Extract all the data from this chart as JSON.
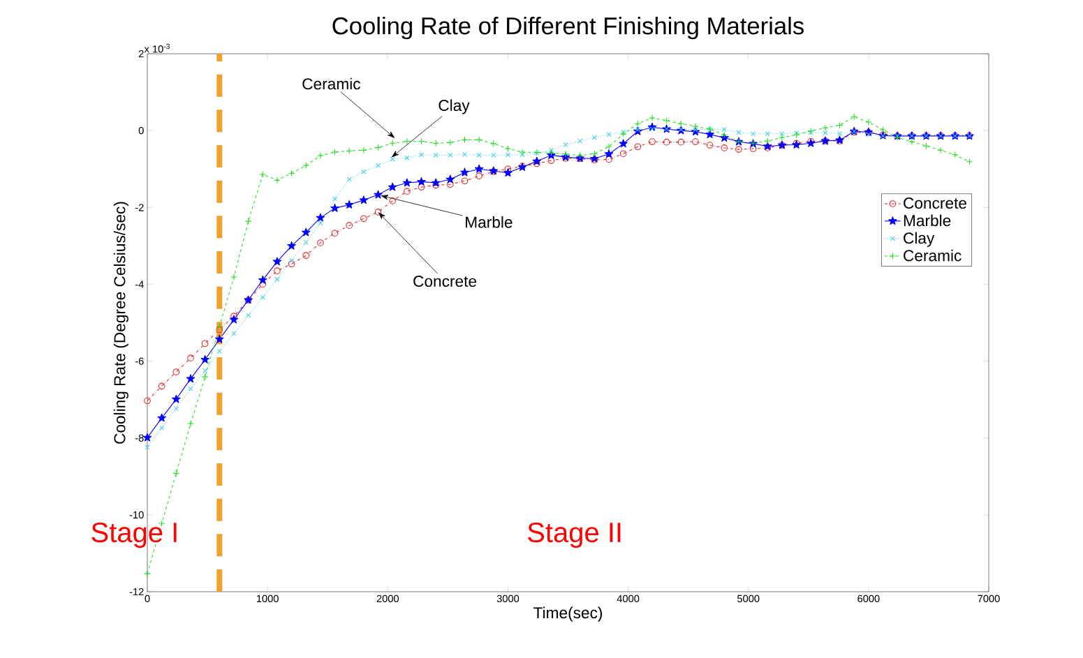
{
  "chart_data": {
    "type": "line",
    "title": "Cooling Rate of Different Finishing Materials",
    "xlabel": "Time(sec)",
    "ylabel": "Cooling Rate (Degree Celsius/sec)",
    "x": [
      0,
      120,
      240,
      360,
      480,
      600,
      720,
      840,
      960,
      1080,
      1200,
      1320,
      1440,
      1560,
      1680,
      1800,
      1920,
      2040,
      2160,
      2280,
      2400,
      2520,
      2640,
      2760,
      2880,
      3000,
      3120,
      3240,
      3360,
      3480,
      3600,
      3720,
      3840,
      3960,
      4080,
      4200,
      4320,
      4440,
      4560,
      4680,
      4800,
      4920,
      5040,
      5160,
      5280,
      5400,
      5520,
      5640,
      5760,
      5880,
      6000,
      6120,
      6240,
      6360,
      6480,
      6600,
      6720,
      6840
    ],
    "series": [
      {
        "name": "Concrete",
        "color": "#e02020",
        "marker": "circle",
        "line_style": "dashdot",
        "values": [
          -7.03,
          -6.65,
          -6.28,
          -5.92,
          -5.54,
          -5.18,
          -4.83,
          -4.41,
          -4.0,
          -3.65,
          -3.47,
          -3.25,
          -2.92,
          -2.67,
          -2.47,
          -2.29,
          -2.12,
          -1.83,
          -1.58,
          -1.47,
          -1.42,
          -1.4,
          -1.31,
          -1.18,
          -1.07,
          -1.0,
          -0.93,
          -0.86,
          -0.78,
          -0.72,
          -0.73,
          -0.76,
          -0.75,
          -0.6,
          -0.42,
          -0.29,
          -0.3,
          -0.3,
          -0.29,
          -0.38,
          -0.45,
          -0.49,
          -0.47,
          -0.45,
          -0.38,
          -0.33,
          -0.28,
          -0.27,
          -0.27,
          -0.04,
          -0.05,
          -0.11,
          -0.14,
          -0.13,
          -0.13,
          -0.13,
          -0.13,
          -0.13
        ]
      },
      {
        "name": "Marble",
        "color": "#0000ff",
        "marker": "star",
        "line_style": "solid",
        "values": [
          -7.99,
          -7.48,
          -6.99,
          -6.46,
          -5.96,
          -5.43,
          -4.92,
          -4.41,
          -3.89,
          -3.41,
          -3.0,
          -2.65,
          -2.27,
          -2.02,
          -1.93,
          -1.81,
          -1.67,
          -1.47,
          -1.36,
          -1.33,
          -1.36,
          -1.27,
          -1.09,
          -1.0,
          -1.05,
          -1.1,
          -0.95,
          -0.8,
          -0.64,
          -0.69,
          -0.72,
          -0.73,
          -0.61,
          -0.34,
          -0.02,
          0.09,
          0.04,
          0.0,
          -0.03,
          -0.1,
          -0.19,
          -0.29,
          -0.34,
          -0.41,
          -0.38,
          -0.37,
          -0.33,
          -0.27,
          -0.25,
          -0.02,
          -0.04,
          -0.13,
          -0.14,
          -0.14,
          -0.14,
          -0.14,
          -0.14,
          -0.14
        ]
      },
      {
        "name": "Clay",
        "color": "#40d0e0",
        "marker": "cross",
        "line_style": "dotted",
        "values": [
          -8.24,
          -7.74,
          -7.23,
          -6.72,
          -6.25,
          -5.74,
          -5.28,
          -4.81,
          -4.34,
          -3.87,
          -3.38,
          -2.91,
          -2.4,
          -1.78,
          -1.27,
          -1.07,
          -0.91,
          -0.74,
          -0.71,
          -0.63,
          -0.64,
          -0.64,
          -0.62,
          -0.64,
          -0.64,
          -0.63,
          -0.63,
          -0.58,
          -0.51,
          -0.37,
          -0.27,
          -0.18,
          -0.1,
          -0.04,
          0.03,
          0.04,
          0.04,
          0.03,
          0.02,
          0.04,
          0.03,
          -0.05,
          -0.08,
          -0.08,
          -0.08,
          -0.06,
          -0.05,
          -0.06,
          -0.08,
          -0.02,
          -0.1,
          -0.14,
          -0.14,
          -0.14,
          -0.14,
          -0.14,
          -0.14,
          -0.14
        ]
      },
      {
        "name": "Ceramic",
        "color": "#20e020",
        "marker": "plus",
        "line_style": "dashed",
        "values": [
          -11.53,
          -10.22,
          -8.92,
          -7.63,
          -6.41,
          -5.1,
          -3.81,
          -2.36,
          -1.14,
          -1.29,
          -1.11,
          -0.91,
          -0.65,
          -0.56,
          -0.53,
          -0.51,
          -0.44,
          -0.33,
          -0.28,
          -0.28,
          -0.33,
          -0.31,
          -0.24,
          -0.24,
          -0.34,
          -0.47,
          -0.56,
          -0.57,
          -0.58,
          -0.61,
          -0.65,
          -0.6,
          -0.42,
          -0.09,
          0.18,
          0.33,
          0.26,
          0.18,
          0.11,
          0.04,
          -0.11,
          -0.29,
          -0.33,
          -0.27,
          -0.18,
          -0.11,
          -0.01,
          0.07,
          0.14,
          0.36,
          0.22,
          0.02,
          -0.18,
          -0.29,
          -0.4,
          -0.51,
          -0.63,
          -0.81
        ]
      }
    ],
    "xlim": [
      0,
      7000
    ],
    "ylim": [
      -12,
      2
    ],
    "xticks": [
      0,
      1000,
      2000,
      3000,
      4000,
      5000,
      6000,
      7000
    ],
    "yticks": [
      -12,
      -10,
      -8,
      -6,
      -4,
      -2,
      0,
      2
    ],
    "ref_lines": [
      {
        "axis": "x",
        "value": 600,
        "color": "#f0a030",
        "line_style": "dashed"
      }
    ],
    "annotations": [
      "x 10$^{-3}$",
      {
        "text": "Ceramic",
        "x": 2060,
        "y": -0.2
      },
      {
        "text": "Clay",
        "x": 2030,
        "y": -0.7
      },
      {
        "text": "Marble",
        "x": 1940,
        "y": -1.69
      },
      {
        "text": "Concrete",
        "x": 1920,
        "y": -2.12
      },
      "Stage I",
      "Stage II"
    ],
    "legend": "right",
    "grid": false
  }
}
